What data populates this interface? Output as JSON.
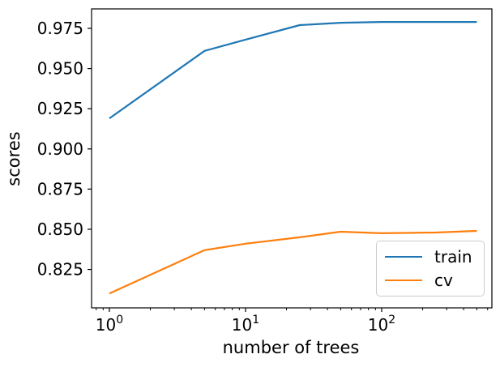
{
  "chart_data": {
    "type": "line",
    "title": "",
    "xlabel": "number of trees",
    "ylabel": "scores",
    "x_scale": "log",
    "grid": false,
    "x": [
      1,
      5,
      10,
      25,
      50,
      100,
      250,
      500
    ],
    "series": [
      {
        "name": "train",
        "color": "#1f77b4",
        "values": [
          0.919,
          0.961,
          0.968,
          0.977,
          0.9785,
          0.979,
          0.979,
          0.979
        ]
      },
      {
        "name": "cv",
        "color": "#ff7f0e",
        "values": [
          0.81,
          0.837,
          0.841,
          0.845,
          0.8485,
          0.8475,
          0.848,
          0.849
        ]
      }
    ],
    "yticks": [
      0.825,
      0.85,
      0.875,
      0.9,
      0.925,
      0.95,
      0.975
    ],
    "xticks": [
      {
        "value": 1,
        "label_base": "10",
        "label_exp": "0"
      },
      {
        "value": 10,
        "label_base": "10",
        "label_exp": "1"
      },
      {
        "value": 100,
        "label_base": "10",
        "label_exp": "2"
      }
    ],
    "xlim": [
      0.74,
      645
    ],
    "ylim": [
      0.8011,
      0.9871
    ],
    "legend_position": "lower right",
    "legend_entries": [
      "train",
      "cv"
    ],
    "axis_color": "#000000",
    "text_color": "#000000",
    "background_color": "#ffffff"
  }
}
